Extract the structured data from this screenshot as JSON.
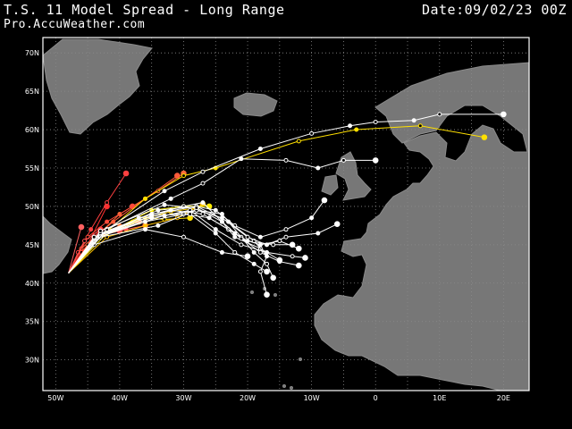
{
  "header": {
    "title": "T.S. 11 Model Spread - Long Range",
    "date": "Date:09/02/23 00Z",
    "source": "Pro.AccuWeather.com"
  },
  "map": {
    "lon_range": [
      -52,
      24
    ],
    "lat_range": [
      26,
      72
    ],
    "lat_ticks": [
      "70N",
      "65N",
      "60N",
      "55N",
      "50N",
      "45N",
      "40N",
      "35N",
      "30N"
    ],
    "lon_ticks": [
      "50W",
      "40W",
      "30W",
      "20W",
      "10W",
      "0",
      "10E",
      "20E"
    ],
    "colors": {
      "background": "#000000",
      "land": "#777777",
      "grid": "#8a8a8a"
    }
  },
  "tracks": [
    {
      "color": "#ff2a2a",
      "points": [
        [
          -48,
          41.3
        ],
        [
          -46,
          44
        ],
        [
          -43,
          47
        ]
      ]
    },
    {
      "color": "#ff3030",
      "points": [
        [
          -48,
          41.3
        ],
        [
          -45,
          45
        ],
        [
          -42,
          50
        ]
      ]
    },
    {
      "color": "#ff4040",
      "points": [
        [
          -48,
          41.3
        ],
        [
          -46.5,
          44
        ],
        [
          -44.5,
          47
        ],
        [
          -42,
          50.5
        ],
        [
          -39,
          54.3
        ]
      ]
    },
    {
      "color": "#ff5a3a",
      "points": [
        [
          -48,
          41.3
        ],
        [
          -46,
          44.5
        ],
        [
          -41,
          48
        ],
        [
          -36,
          51
        ],
        [
          -31,
          54
        ]
      ]
    },
    {
      "color": "#ff6a3a",
      "points": [
        [
          -48,
          41.3
        ],
        [
          -45,
          45
        ],
        [
          -40,
          49
        ],
        [
          -34,
          52
        ],
        [
          -30,
          54.3
        ]
      ]
    },
    {
      "color": "#ff4a3a",
      "points": [
        [
          -48,
          41.3
        ],
        [
          -45,
          46
        ],
        [
          -42,
          48
        ],
        [
          -38,
          50
        ]
      ]
    },
    {
      "color": "#ff5050",
      "points": [
        [
          -48,
          41.3
        ],
        [
          -45.5,
          45.5
        ],
        [
          -43,
          47
        ],
        [
          -40,
          46.8
        ]
      ]
    },
    {
      "color": "#ff5a5a",
      "points": [
        [
          -48,
          41.3
        ],
        [
          -44,
          46
        ],
        [
          -39,
          47
        ],
        [
          -36,
          47.5
        ]
      ]
    },
    {
      "color": "#ff7a3a",
      "points": [
        [
          -48,
          41.3
        ],
        [
          -44,
          45.8
        ],
        [
          -40,
          47.5
        ],
        [
          -37,
          48
        ]
      ]
    },
    {
      "color": "#ff6060",
      "points": [
        [
          -48,
          41.3
        ],
        [
          -46,
          47.3
        ]
      ]
    },
    {
      "color": "#ffd000",
      "points": [
        [
          -48,
          41.3
        ],
        [
          -44,
          45.5
        ],
        [
          -38,
          48
        ],
        [
          -32,
          49.3
        ],
        [
          -28,
          49.8
        ]
      ]
    },
    {
      "color": "#ffe000",
      "points": [
        [
          -48,
          41.3
        ],
        [
          -43,
          46
        ],
        [
          -36,
          48.5
        ],
        [
          -33,
          48.3
        ],
        [
          -29,
          48.5
        ]
      ]
    },
    {
      "color": "#ffc000",
      "points": [
        [
          -48,
          41.3
        ],
        [
          -42,
          46
        ],
        [
          -36,
          47.5
        ],
        [
          -31,
          48.5
        ],
        [
          -27,
          50.3
        ]
      ]
    },
    {
      "color": "#ffee00",
      "points": [
        [
          -48,
          41.3
        ],
        [
          -42,
          46.5
        ],
        [
          -35,
          49.5
        ],
        [
          -30,
          50
        ],
        [
          -26,
          50
        ]
      ]
    },
    {
      "color": "#ffe000",
      "points": [
        [
          -48,
          41.3
        ],
        [
          -43,
          46
        ],
        [
          -36,
          51
        ],
        [
          -30,
          54
        ],
        [
          -25,
          55
        ],
        [
          -12,
          58.5
        ],
        [
          -3,
          60
        ],
        [
          7,
          60.5
        ],
        [
          17,
          59
        ]
      ]
    },
    {
      "color": "#ffffff",
      "points": [
        [
          -48,
          41.3
        ],
        [
          -44,
          45
        ],
        [
          -36,
          47
        ],
        [
          -30,
          46
        ],
        [
          -24,
          44
        ],
        [
          -20,
          43.5
        ]
      ]
    },
    {
      "color": "#ffffff",
      "points": [
        [
          -48,
          41.3
        ],
        [
          -44,
          45.5
        ],
        [
          -37,
          48.5
        ],
        [
          -30,
          50
        ],
        [
          -27,
          50.5
        ],
        [
          -24,
          48
        ],
        [
          -22,
          46
        ],
        [
          -18,
          44.5
        ],
        [
          -15,
          43
        ]
      ]
    },
    {
      "color": "#ffffff",
      "points": [
        [
          -48,
          41.3
        ],
        [
          -43,
          46
        ],
        [
          -34,
          47.5
        ],
        [
          -28,
          49.5
        ],
        [
          -24,
          49
        ],
        [
          -21,
          46
        ],
        [
          -19,
          44
        ],
        [
          -17,
          42.5
        ],
        [
          -16,
          40.7
        ]
      ]
    },
    {
      "color": "#ffffff",
      "points": [
        [
          -48,
          41.3
        ],
        [
          -44,
          45.8
        ],
        [
          -36,
          48
        ],
        [
          -30,
          49
        ],
        [
          -26,
          48.5
        ],
        [
          -23,
          47
        ],
        [
          -20,
          45.5
        ],
        [
          -16,
          45
        ],
        [
          -13,
          45
        ]
      ]
    },
    {
      "color": "#ffffff",
      "points": [
        [
          -48,
          41.3
        ],
        [
          -43,
          46.5
        ],
        [
          -35,
          49
        ],
        [
          -28,
          50
        ],
        [
          -25,
          49.5
        ],
        [
          -22,
          47.5
        ],
        [
          -18,
          46
        ],
        [
          -14,
          47
        ],
        [
          -10,
          48.5
        ],
        [
          -8,
          50.8
        ]
      ]
    },
    {
      "color": "#ffffff",
      "points": [
        [
          -48,
          41.3
        ],
        [
          -44,
          46
        ],
        [
          -33,
          48.8
        ],
        [
          -29,
          49.5
        ],
        [
          -25,
          47
        ],
        [
          -21,
          45
        ],
        [
          -17,
          44
        ],
        [
          -13,
          43.5
        ],
        [
          -11,
          43.3
        ]
      ]
    },
    {
      "color": "#ffffff",
      "points": [
        [
          -48,
          41.3
        ],
        [
          -43,
          46.2
        ],
        [
          -34,
          49.5
        ],
        [
          -28,
          50
        ],
        [
          -23,
          48
        ],
        [
          -19,
          45.5
        ],
        [
          -17,
          43.5
        ],
        [
          -18,
          41.5
        ],
        [
          -17,
          38.5
        ]
      ]
    },
    {
      "color": "#ffffff",
      "points": [
        [
          -48,
          41.3
        ],
        [
          -44,
          46
        ],
        [
          -35,
          48.5
        ],
        [
          -28,
          49.5
        ],
        [
          -24,
          48.5
        ],
        [
          -20,
          46
        ],
        [
          -17,
          45
        ],
        [
          -14,
          46
        ],
        [
          -9,
          46.5
        ],
        [
          -6,
          47.7
        ]
      ]
    },
    {
      "color": "#ffffff",
      "points": [
        [
          -48,
          41.3
        ],
        [
          -43,
          46.5
        ],
        [
          -32,
          49.5
        ],
        [
          -27,
          49
        ],
        [
          -22,
          46.5
        ],
        [
          -18,
          44
        ],
        [
          -15,
          42.8
        ],
        [
          -12,
          42.3
        ]
      ]
    },
    {
      "color": "#ffffff",
      "points": [
        [
          -48,
          41.3
        ],
        [
          -42,
          47
        ],
        [
          -32,
          51
        ],
        [
          -27,
          53
        ],
        [
          -21,
          56.2
        ],
        [
          -14,
          56
        ],
        [
          -9,
          55
        ],
        [
          -5,
          56
        ],
        [
          0,
          56
        ]
      ]
    },
    {
      "color": "#ffffff",
      "points": [
        [
          -48,
          41.3
        ],
        [
          -42,
          47
        ],
        [
          -33,
          52
        ],
        [
          -27,
          54.5
        ],
        [
          -18,
          57.5
        ],
        [
          -10,
          59.5
        ],
        [
          -4,
          60.5
        ],
        [
          0,
          61
        ],
        [
          6,
          61.2
        ],
        [
          10,
          62
        ],
        [
          20,
          62
        ]
      ]
    },
    {
      "color": "#ffffff",
      "points": [
        [
          -48,
          41.3
        ],
        [
          -43,
          46.8
        ],
        [
          -33,
          50.2
        ],
        [
          -28,
          49.8
        ],
        [
          -24,
          48
        ],
        [
          -21,
          45.8
        ],
        [
          -18,
          45
        ],
        [
          -15,
          45.5
        ],
        [
          -12,
          44.5
        ]
      ]
    },
    {
      "color": "#ffffff",
      "points": [
        [
          -48,
          41.3
        ],
        [
          -44,
          46
        ],
        [
          -35,
          48.8
        ],
        [
          -29,
          49
        ],
        [
          -25,
          46.5
        ],
        [
          -22,
          44
        ],
        [
          -19,
          42.5
        ],
        [
          -17,
          41.5
        ]
      ]
    }
  ]
}
